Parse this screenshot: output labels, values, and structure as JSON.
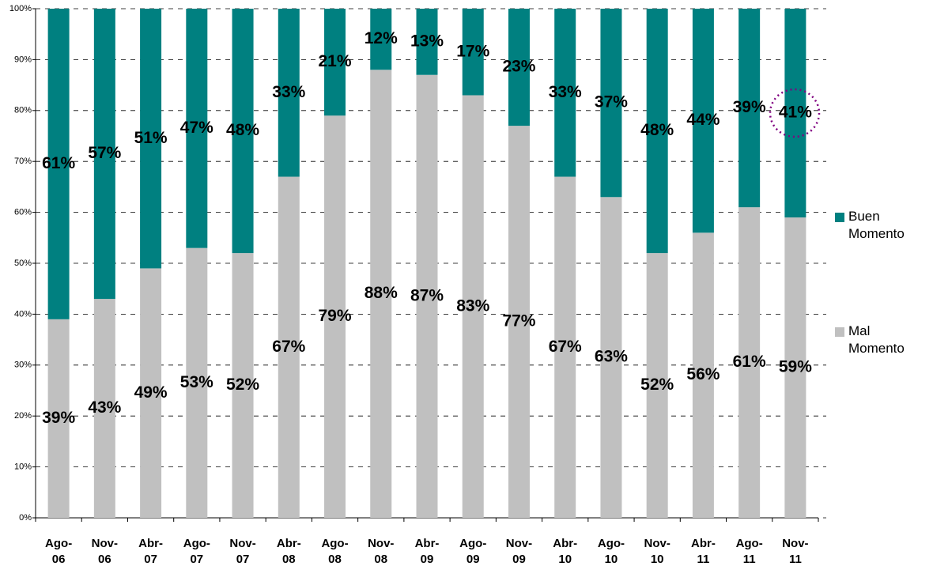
{
  "chart_data": {
    "type": "stacked_bar",
    "categories": [
      "Ago-06",
      "Nov-06",
      "Abr-07",
      "Ago-07",
      "Nov-07",
      "Abr-08",
      "Ago-08",
      "Nov-08",
      "Abr-09",
      "Ago-09",
      "Nov-09",
      "Abr-10",
      "Ago-10",
      "Nov-10",
      "Abr-11",
      "Ago-11",
      "Nov-11"
    ],
    "series": [
      {
        "name": "Mal Momento",
        "color": "#c0c0c0",
        "values": [
          39,
          43,
          49,
          53,
          52,
          67,
          79,
          88,
          87,
          83,
          77,
          67,
          63,
          52,
          56,
          61,
          59
        ],
        "value_labels": [
          "39%",
          "43%",
          "49%",
          "53%",
          "52%",
          "67%",
          "79%",
          "88%",
          "87%",
          "83%",
          "77%",
          "67%",
          "63%",
          "52%",
          "56%",
          "61%",
          "59%"
        ]
      },
      {
        "name": "Buen Momento",
        "color": "#008080",
        "values": [
          61,
          57,
          51,
          47,
          48,
          33,
          21,
          12,
          13,
          17,
          23,
          33,
          37,
          48,
          44,
          39,
          41
        ],
        "value_labels": [
          "61%",
          "57%",
          "51%",
          "47%",
          "48%",
          "33%",
          "21%",
          "12%",
          "13%",
          "17%",
          "23%",
          "33%",
          "37%",
          "48%",
          "44%",
          "39%",
          "41%"
        ]
      }
    ],
    "ylim": [
      0,
      100
    ],
    "yticks": [
      {
        "value": 0,
        "label": "0%"
      },
      {
        "value": 10,
        "label": "10%"
      },
      {
        "value": 20,
        "label": "20%"
      },
      {
        "value": 30,
        "label": "30%"
      },
      {
        "value": 40,
        "label": "40%"
      },
      {
        "value": 50,
        "label": "50%"
      },
      {
        "value": 60,
        "label": "60%"
      },
      {
        "value": 70,
        "label": "70%"
      },
      {
        "value": 80,
        "label": "80%"
      },
      {
        "value": 90,
        "label": "90%"
      },
      {
        "value": 100,
        "label": "100%"
      }
    ],
    "grid": true
  }
}
